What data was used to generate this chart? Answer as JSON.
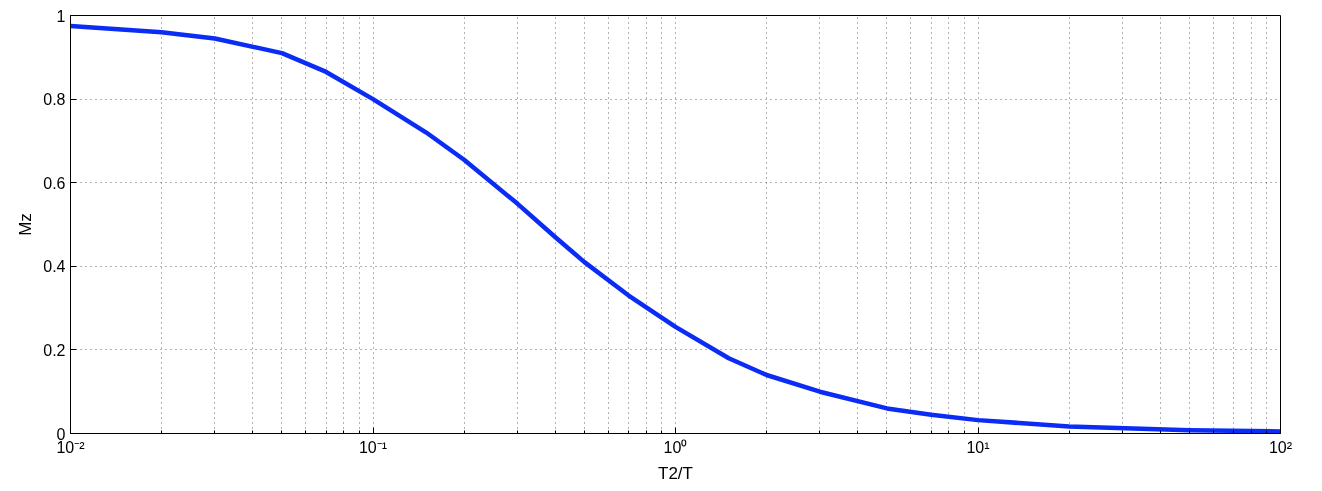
{
  "chart_data": {
    "type": "line",
    "xlabel": "T2/T",
    "ylabel": "Mz",
    "log": "x",
    "grid": true,
    "marker": "none",
    "line_style": "solid",
    "xlim": [
      0.01,
      100
    ],
    "xticks": [
      {
        "value": 0.01,
        "label": "10⁻²"
      },
      {
        "value": 0.1,
        "label": "10⁻¹"
      },
      {
        "value": 1,
        "label": "10⁰"
      },
      {
        "value": 10,
        "label": "10¹"
      },
      {
        "value": 100,
        "label": "10²"
      }
    ],
    "ylim": [
      0,
      1
    ],
    "yticks": [
      0,
      0.2,
      0.4,
      0.6,
      0.8,
      1
    ],
    "series": [
      {
        "color": "#0a2cf5",
        "x": [
          0.01,
          0.02,
          0.03,
          0.05,
          0.07,
          0.1,
          0.15,
          0.2,
          0.3,
          0.4,
          0.5,
          0.7,
          1,
          1.5,
          2,
          3,
          5,
          7,
          10,
          20,
          50,
          100
        ],
        "values": [
          0.975,
          0.96,
          0.945,
          0.91,
          0.865,
          0.8,
          0.72,
          0.655,
          0.55,
          0.47,
          0.41,
          0.33,
          0.255,
          0.18,
          0.14,
          0.1,
          0.06,
          0.045,
          0.032,
          0.017,
          0.008,
          0.005
        ]
      }
    ]
  }
}
